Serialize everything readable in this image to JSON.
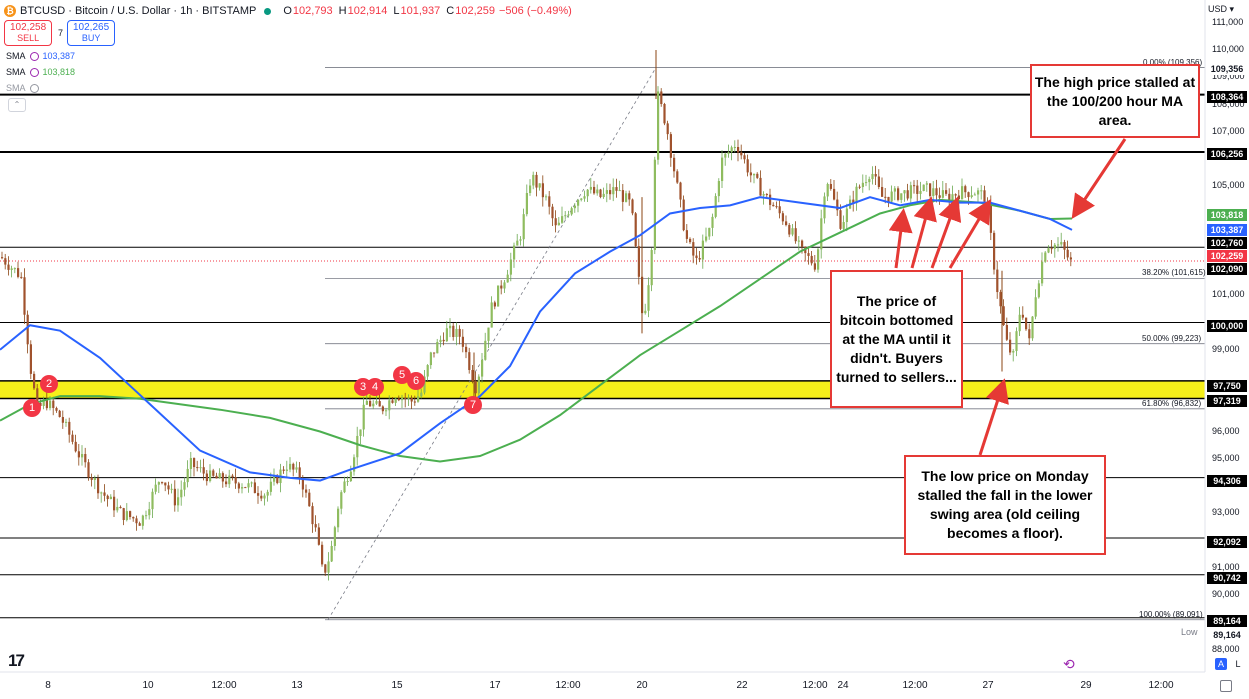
{
  "header": {
    "symbol": "BTCUSD · Bitcoin / U.S. Dollar · 1h · BITSTAMP",
    "open_label": "O",
    "open": "102,793",
    "high_label": "H",
    "high": "102,914",
    "low_label": "L",
    "low": "101,937",
    "close_label": "C",
    "close": "102,259",
    "change": "−506 (−0.49%)"
  },
  "order": {
    "sell_price": "102,258",
    "sell_label": "SELL",
    "buy_price": "102,265",
    "buy_label": "BUY",
    "spread": "7"
  },
  "indicators": [
    {
      "name": "SMA",
      "value": "103,387",
      "color": "#2962ff"
    },
    {
      "name": "SMA",
      "value": "103,818",
      "color": "#4caf50"
    },
    {
      "name": "SMA",
      "value": "",
      "color": "#9598a1"
    }
  ],
  "currency": "USD",
  "y_axis_ticks": [
    "111,000",
    "110,000",
    "109,000",
    "108,000",
    "107,000",
    "105,000",
    "101,000",
    "99,000",
    "96,000",
    "95,000",
    "93,000",
    "91,000",
    "90,000",
    "88,000"
  ],
  "price_tags": [
    {
      "value": "109,356",
      "color": "#131722",
      "text": "#131722",
      "bg": "#fff"
    },
    {
      "value": "108,364",
      "color": "#000",
      "text": "#fff",
      "bg": "#000"
    },
    {
      "value": "106,256",
      "color": "#000",
      "text": "#fff",
      "bg": "#000"
    },
    {
      "value": "103,818",
      "color": "#4caf50",
      "text": "#fff",
      "bg": "#4caf50"
    },
    {
      "value": "103,387",
      "color": "#2962ff",
      "text": "#fff",
      "bg": "#2962ff"
    },
    {
      "value": "102,760",
      "color": "#000",
      "text": "#fff",
      "bg": "#000"
    },
    {
      "value": "102,259",
      "color": "#f23645",
      "text": "#fff",
      "bg": "#f23645"
    },
    {
      "value": "102,090",
      "color": "#000",
      "text": "#fff",
      "bg": "#000"
    },
    {
      "value": "100,000",
      "color": "#000",
      "text": "#fff",
      "bg": "#000"
    },
    {
      "value": "97,750",
      "color": "#000",
      "text": "#fff",
      "bg": "#000"
    },
    {
      "value": "97,319",
      "color": "#000",
      "text": "#fff",
      "bg": "#000"
    },
    {
      "value": "94,306",
      "color": "#000",
      "text": "#fff",
      "bg": "#000"
    },
    {
      "value": "92,092",
      "color": "#000",
      "text": "#fff",
      "bg": "#000"
    },
    {
      "value": "90,742",
      "color": "#000",
      "text": "#fff",
      "bg": "#000"
    },
    {
      "value": "89,164",
      "color": "#000",
      "text": "#fff",
      "bg": "#000"
    },
    {
      "value": "89,164",
      "color": "#fff",
      "text": "#131722",
      "bg": "#fff"
    }
  ],
  "low_label": "Low",
  "fib_labels": [
    "0.00% (109,356)",
    "38.20% (101,615)",
    "50.00% (99,223)",
    "61.80% (96,832)",
    "100.00% (89,091)"
  ],
  "x_axis_ticks": [
    "8",
    "10",
    "12:00",
    "13",
    "15",
    "17",
    "12:00",
    "20",
    "22",
    "12:00",
    "24",
    "12:00",
    "27",
    "29",
    "12:00"
  ],
  "markers": [
    "1",
    "2",
    "3",
    "4",
    "5",
    "6",
    "7"
  ],
  "annotations": {
    "high_ma": "The high price stalled at the 100/200 hour MA area.",
    "bottomed": "The price of bitcoin bottomed at the MA until it didn't. Buyers turned to sellers...",
    "low_monday": "The low price on Monday stalled the fall in the lower swing area (old ceiling becomes a floor)."
  },
  "buttons": {
    "auto": "A",
    "log": "L"
  },
  "logo": "TV"
}
